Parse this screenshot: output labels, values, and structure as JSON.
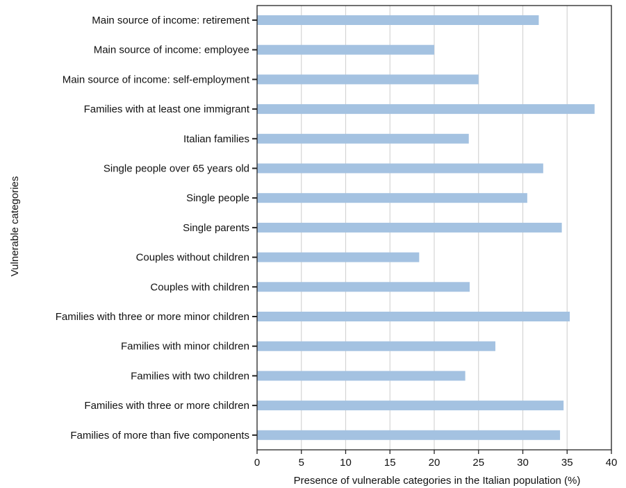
{
  "chart_data": {
    "type": "bar",
    "orientation": "horizontal",
    "title": "",
    "xlabel": "Presence of vulnerable categories in the Italian population (%)",
    "ylabel": "Vulnerable categories",
    "xlim": [
      0,
      40
    ],
    "xticks": [
      0,
      5,
      10,
      15,
      20,
      25,
      30,
      35,
      40
    ],
    "grid": "vertical gridlines",
    "bar_color": "#a4c2e1",
    "categories": [
      "Main source of income: retirement",
      "Main source of income: employee",
      "Main source of income: self-employment",
      "Families with at least one immigrant",
      "Italian families",
      "Single people over 65 years old",
      "Single people",
      "Single parents",
      "Couples without children",
      "Couples with children",
      "Families with three or more minor children",
      "Families with minor children",
      "Families with two children",
      "Families with three or more children",
      "Families of more than five components"
    ],
    "values": [
      31.8,
      20.0,
      25.0,
      38.1,
      23.9,
      32.3,
      30.5,
      34.4,
      18.3,
      24.0,
      35.3,
      26.9,
      23.5,
      34.6,
      34.2
    ]
  }
}
